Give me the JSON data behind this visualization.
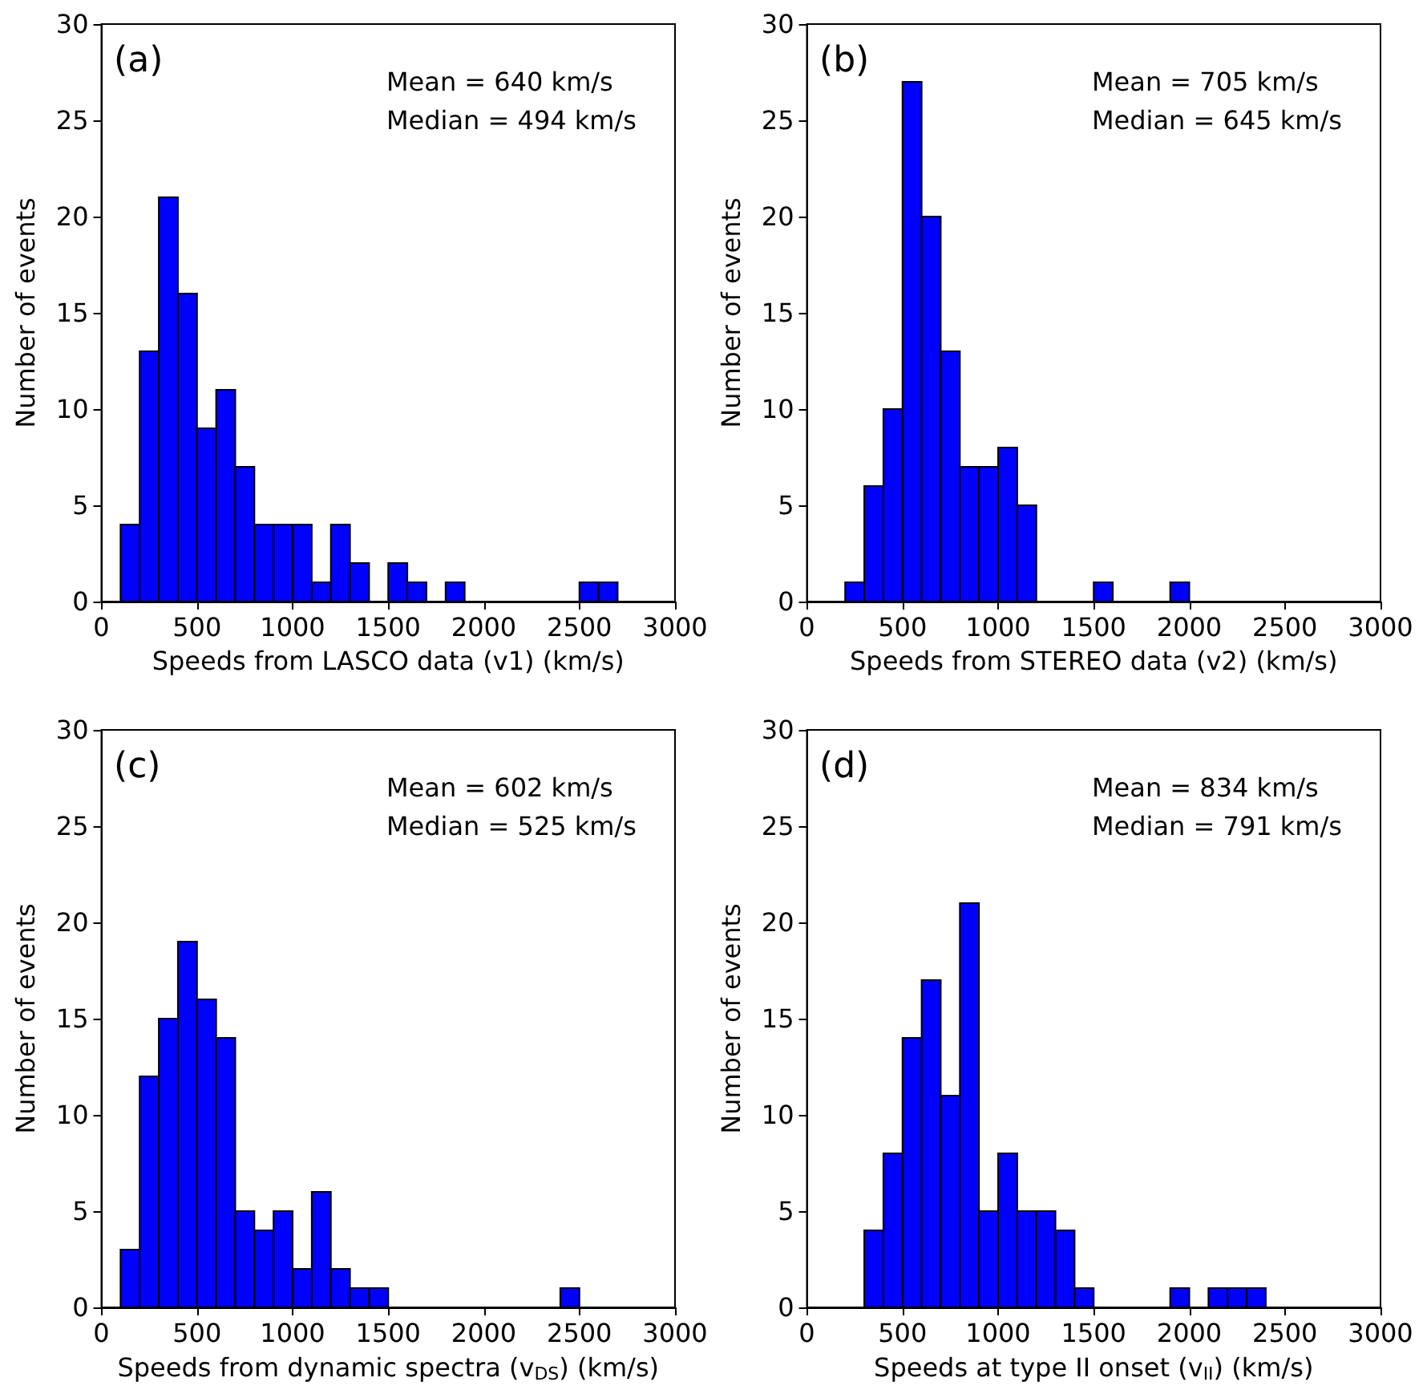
{
  "chart_data": [
    {
      "type": "histogram",
      "title": "(a)",
      "annotations": [
        "Mean = 640 km/s",
        "Median = 494 km/s"
      ],
      "xlabel": "Speeds from LASCO data (v1) (km/s)",
      "ylabel": "Number of events",
      "color": "#0000ff",
      "bins": [
        100,
        200,
        300,
        400,
        500,
        600,
        700,
        800,
        900,
        1000,
        1100,
        1200,
        1300,
        1400,
        1500,
        1600,
        1700,
        1800,
        1900,
        2000,
        2100,
        2200,
        2300,
        2400,
        2500,
        2600,
        2700
      ],
      "values": [
        4,
        13,
        21,
        16,
        9,
        11,
        7,
        4,
        4,
        4,
        1,
        4,
        2,
        0,
        2,
        1,
        0,
        1,
        0,
        0,
        0,
        0,
        0,
        0,
        1,
        1
      ],
      "xlim": [
        0,
        3000
      ],
      "xticks": [
        0,
        500,
        1000,
        1500,
        2000,
        2500,
        3000
      ],
      "ylim": [
        0,
        30
      ],
      "yticks": [
        0,
        5,
        10,
        15,
        20,
        25,
        30
      ]
    },
    {
      "type": "histogram",
      "title": "(b)",
      "annotations": [
        "Mean = 705 km/s",
        "Median = 645 km/s"
      ],
      "xlabel": "Speeds from STEREO data (v2) (km/s)",
      "ylabel": "Number of events",
      "color": "#0000ff",
      "bins": [
        200,
        300,
        400,
        500,
        600,
        700,
        800,
        900,
        1000,
        1100,
        1200,
        1300,
        1400,
        1500,
        1600,
        1700,
        1800,
        1900,
        2000
      ],
      "values": [
        1,
        6,
        10,
        27,
        20,
        13,
        7,
        7,
        8,
        5,
        0,
        0,
        0,
        1,
        0,
        0,
        0,
        1
      ],
      "xlim": [
        0,
        3000
      ],
      "xticks": [
        0,
        500,
        1000,
        1500,
        2000,
        2500,
        3000
      ],
      "ylim": [
        0,
        30
      ],
      "yticks": [
        0,
        5,
        10,
        15,
        20,
        25,
        30
      ]
    },
    {
      "type": "histogram",
      "title": "(c)",
      "annotations": [
        "Mean = 602 km/s",
        "Median = 525 km/s"
      ],
      "xlabel": "Speeds from dynamic spectra (v$_{DS}$) (km/s)",
      "ylabel": "Number of events",
      "color": "#0000ff",
      "bins": [
        100,
        200,
        300,
        400,
        500,
        600,
        700,
        800,
        900,
        1000,
        1100,
        1200,
        1300,
        1400,
        1500,
        1600,
        1700,
        1800,
        1900,
        2000,
        2100,
        2200,
        2300,
        2400,
        2500
      ],
      "values": [
        3,
        12,
        15,
        19,
        16,
        14,
        5,
        4,
        5,
        2,
        6,
        2,
        1,
        1,
        0,
        0,
        0,
        0,
        0,
        0,
        0,
        0,
        0,
        1
      ],
      "xlim": [
        0,
        3000
      ],
      "xticks": [
        0,
        500,
        1000,
        1500,
        2000,
        2500,
        3000
      ],
      "ylim": [
        0,
        30
      ],
      "yticks": [
        0,
        5,
        10,
        15,
        20,
        25,
        30
      ]
    },
    {
      "type": "histogram",
      "title": "(d)",
      "annotations": [
        "Mean = 834 km/s",
        "Median = 791 km/s"
      ],
      "xlabel": "Speeds at type II onset (v$_{II}$) (km/s)",
      "ylabel": "Number of events",
      "color": "#0000ff",
      "bins": [
        300,
        400,
        500,
        600,
        700,
        800,
        900,
        1000,
        1100,
        1200,
        1300,
        1400,
        1500,
        1600,
        1700,
        1800,
        1900,
        2000,
        2100,
        2200,
        2300,
        2400
      ],
      "values": [
        4,
        8,
        14,
        17,
        11,
        21,
        5,
        8,
        5,
        5,
        4,
        1,
        0,
        0,
        0,
        0,
        1,
        0,
        1,
        1,
        1
      ],
      "xlim": [
        0,
        3000
      ],
      "xticks": [
        0,
        500,
        1000,
        1500,
        2000,
        2500,
        3000
      ],
      "ylim": [
        0,
        30
      ],
      "yticks": [
        0,
        5,
        10,
        15,
        20,
        25,
        30
      ]
    }
  ]
}
